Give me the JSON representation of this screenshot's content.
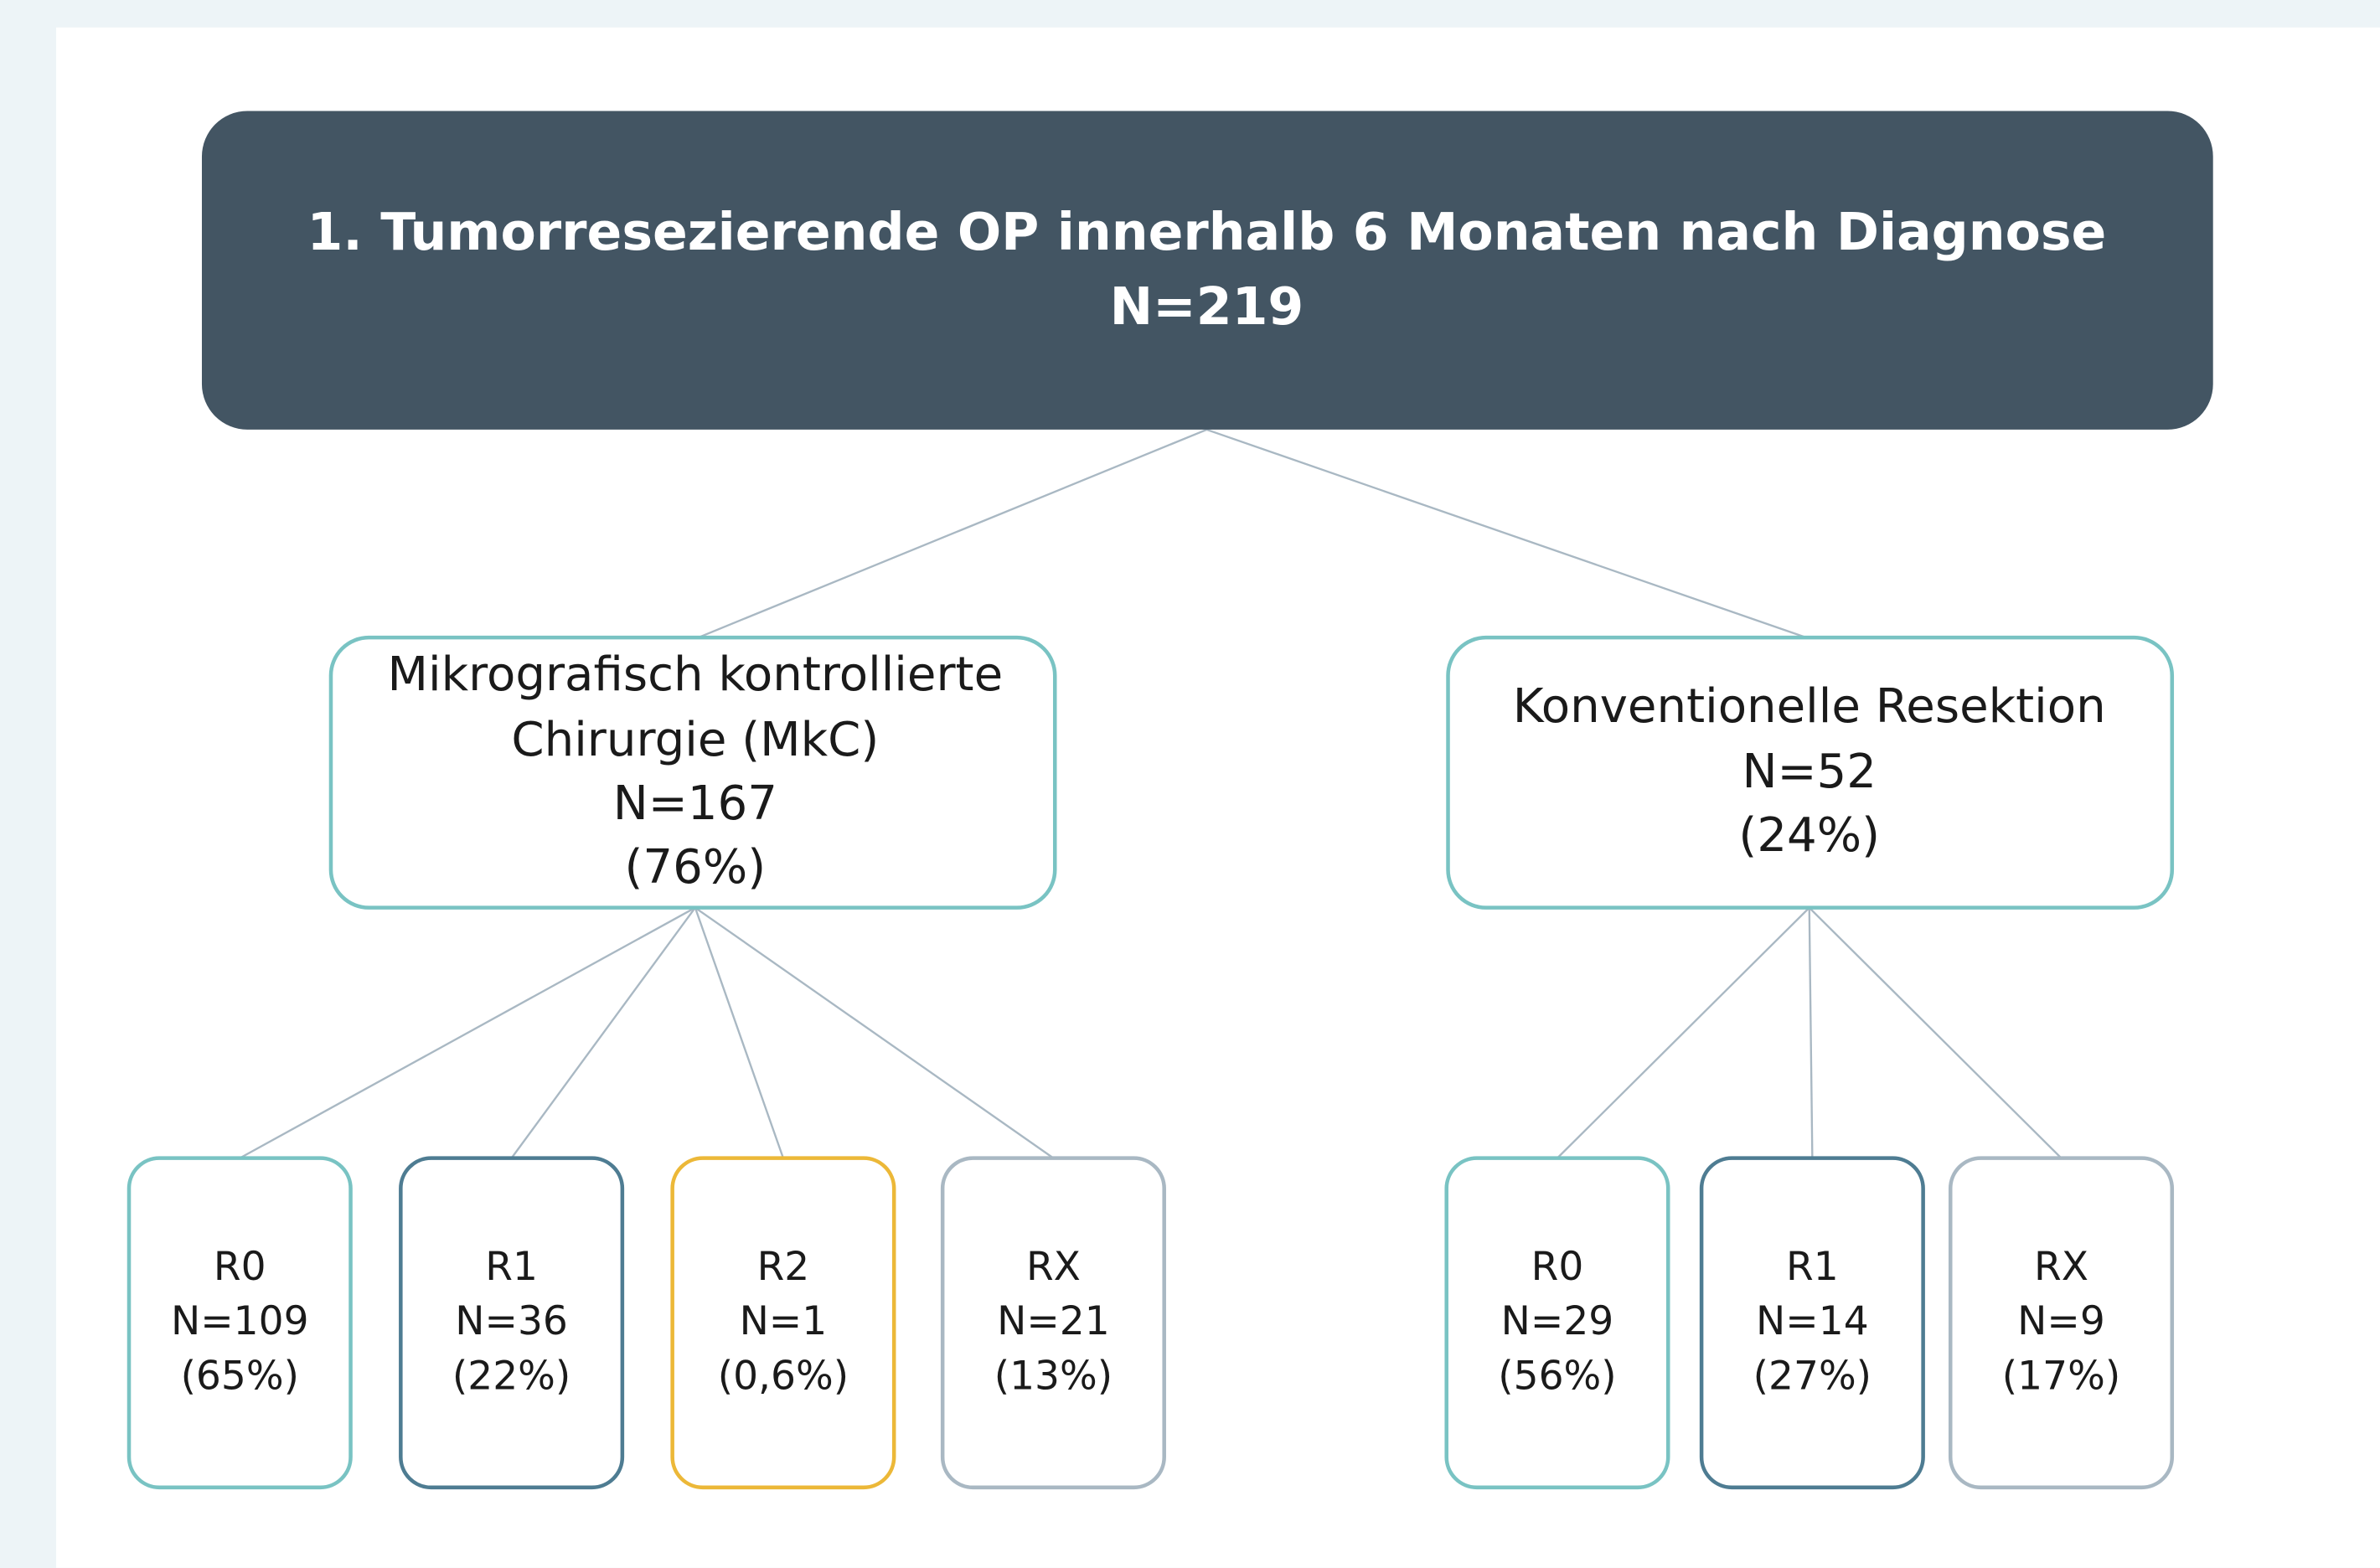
{
  "root": {
    "lines": [
      "1. Tumorresezierende OP innerhalb 6 Monaten nach Diagnose",
      "N=219"
    ]
  },
  "nodes": [
    {
      "lines": [
        "Mikrografisch kontrollierte",
        "Chirurgie (MkC)",
        "N=167",
        "(76%)"
      ],
      "children": [
        {
          "lines": [
            "R0",
            "N=109",
            "(65%)"
          ]
        },
        {
          "lines": [
            "R1",
            "N=36",
            "(22%)"
          ]
        },
        {
          "lines": [
            "R2",
            "N=1",
            "(0,6%)"
          ]
        },
        {
          "lines": [
            "RX",
            "N=21",
            "(13%)"
          ]
        }
      ]
    },
    {
      "lines": [
        "Konventionelle Resektion",
        "N=52",
        "(24%)"
      ],
      "children": [
        {
          "lines": [
            "R0",
            "N=29",
            "(56%)"
          ]
        },
        {
          "lines": [
            "R1",
            "N=14",
            "(27%)"
          ]
        },
        {
          "lines": [
            "RX",
            "N=9",
            "(17%)"
          ]
        }
      ]
    }
  ]
}
